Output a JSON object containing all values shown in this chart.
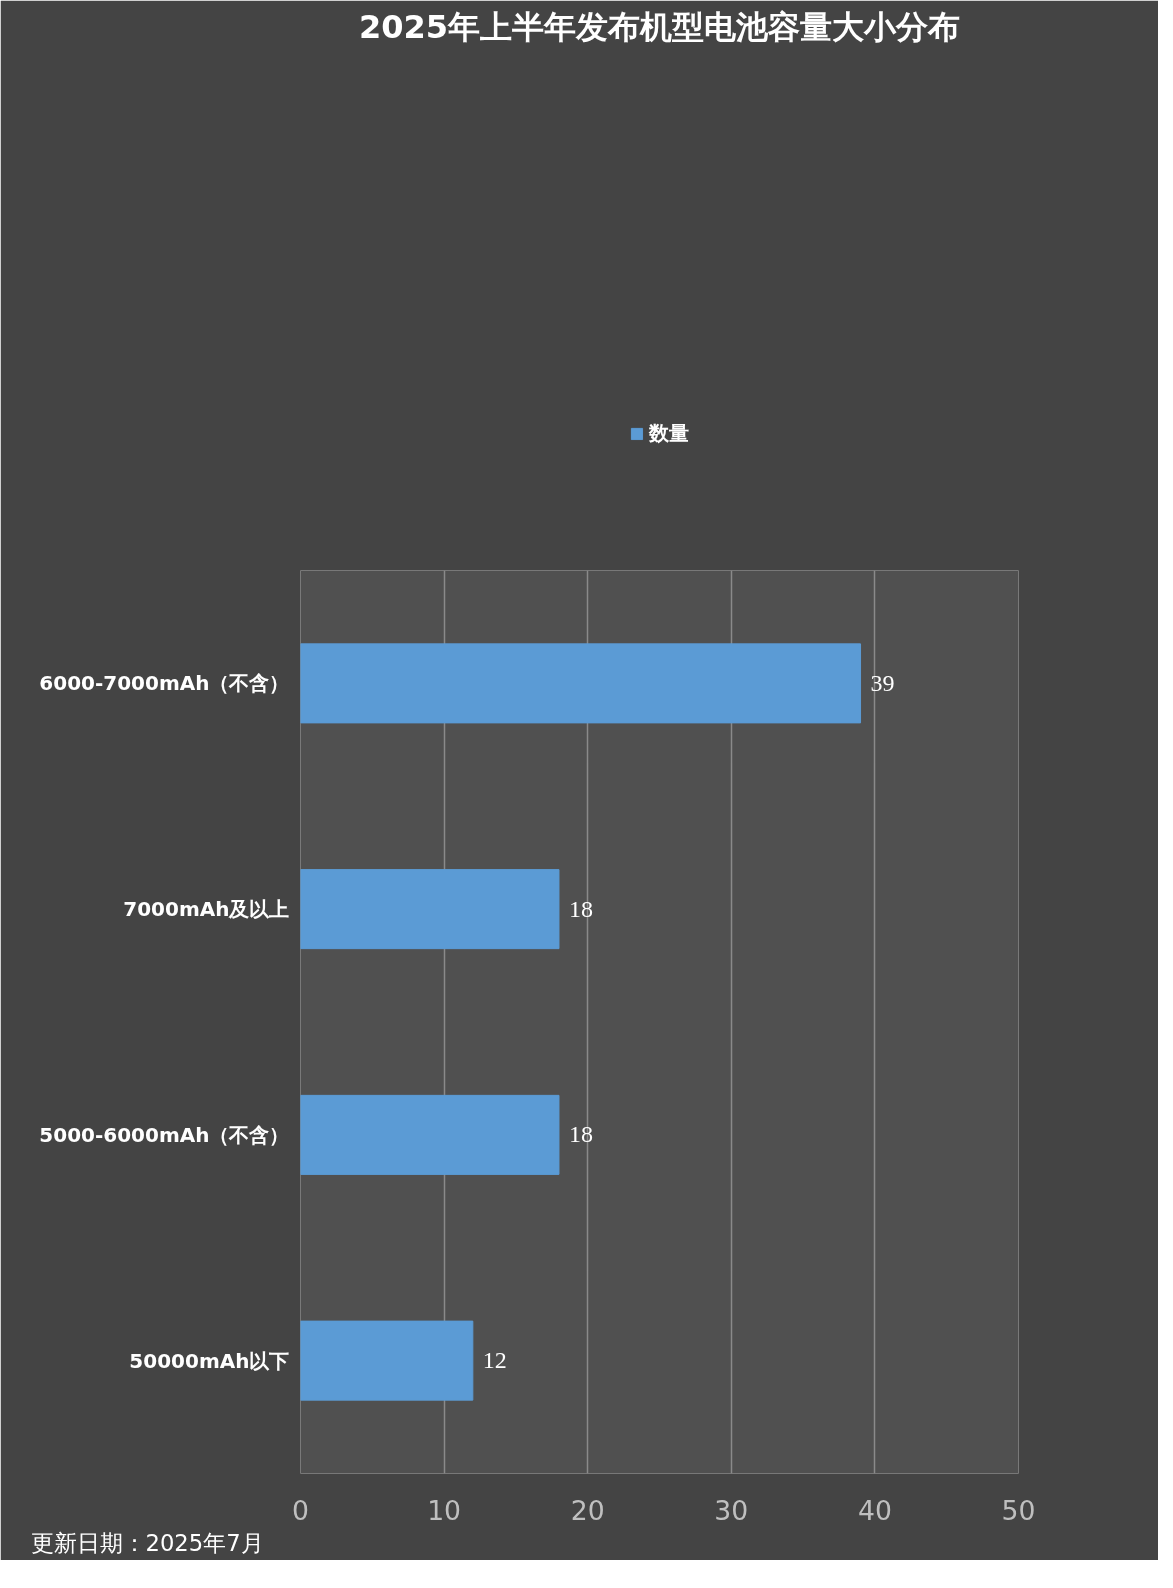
{
  "chart_data": {
    "type": "bar",
    "orientation": "horizontal",
    "title": "2025年上半年发布机型电池容量大小分布",
    "categories": [
      "6000-7000mAh（不含）",
      "7000mAh及以上",
      "5000-6000mAh（不含）",
      "50000mAh以下"
    ],
    "series": [
      {
        "name": "数量",
        "color": "#5b9bd5",
        "values": [
          39,
          18,
          18,
          12
        ]
      }
    ],
    "xlim": [
      0,
      50
    ],
    "xticks": [
      0,
      10,
      20,
      30,
      40,
      50
    ],
    "grid": "x",
    "legend": "top",
    "data_labels": true,
    "annotations": [
      "更新日期：2025年7月"
    ]
  }
}
